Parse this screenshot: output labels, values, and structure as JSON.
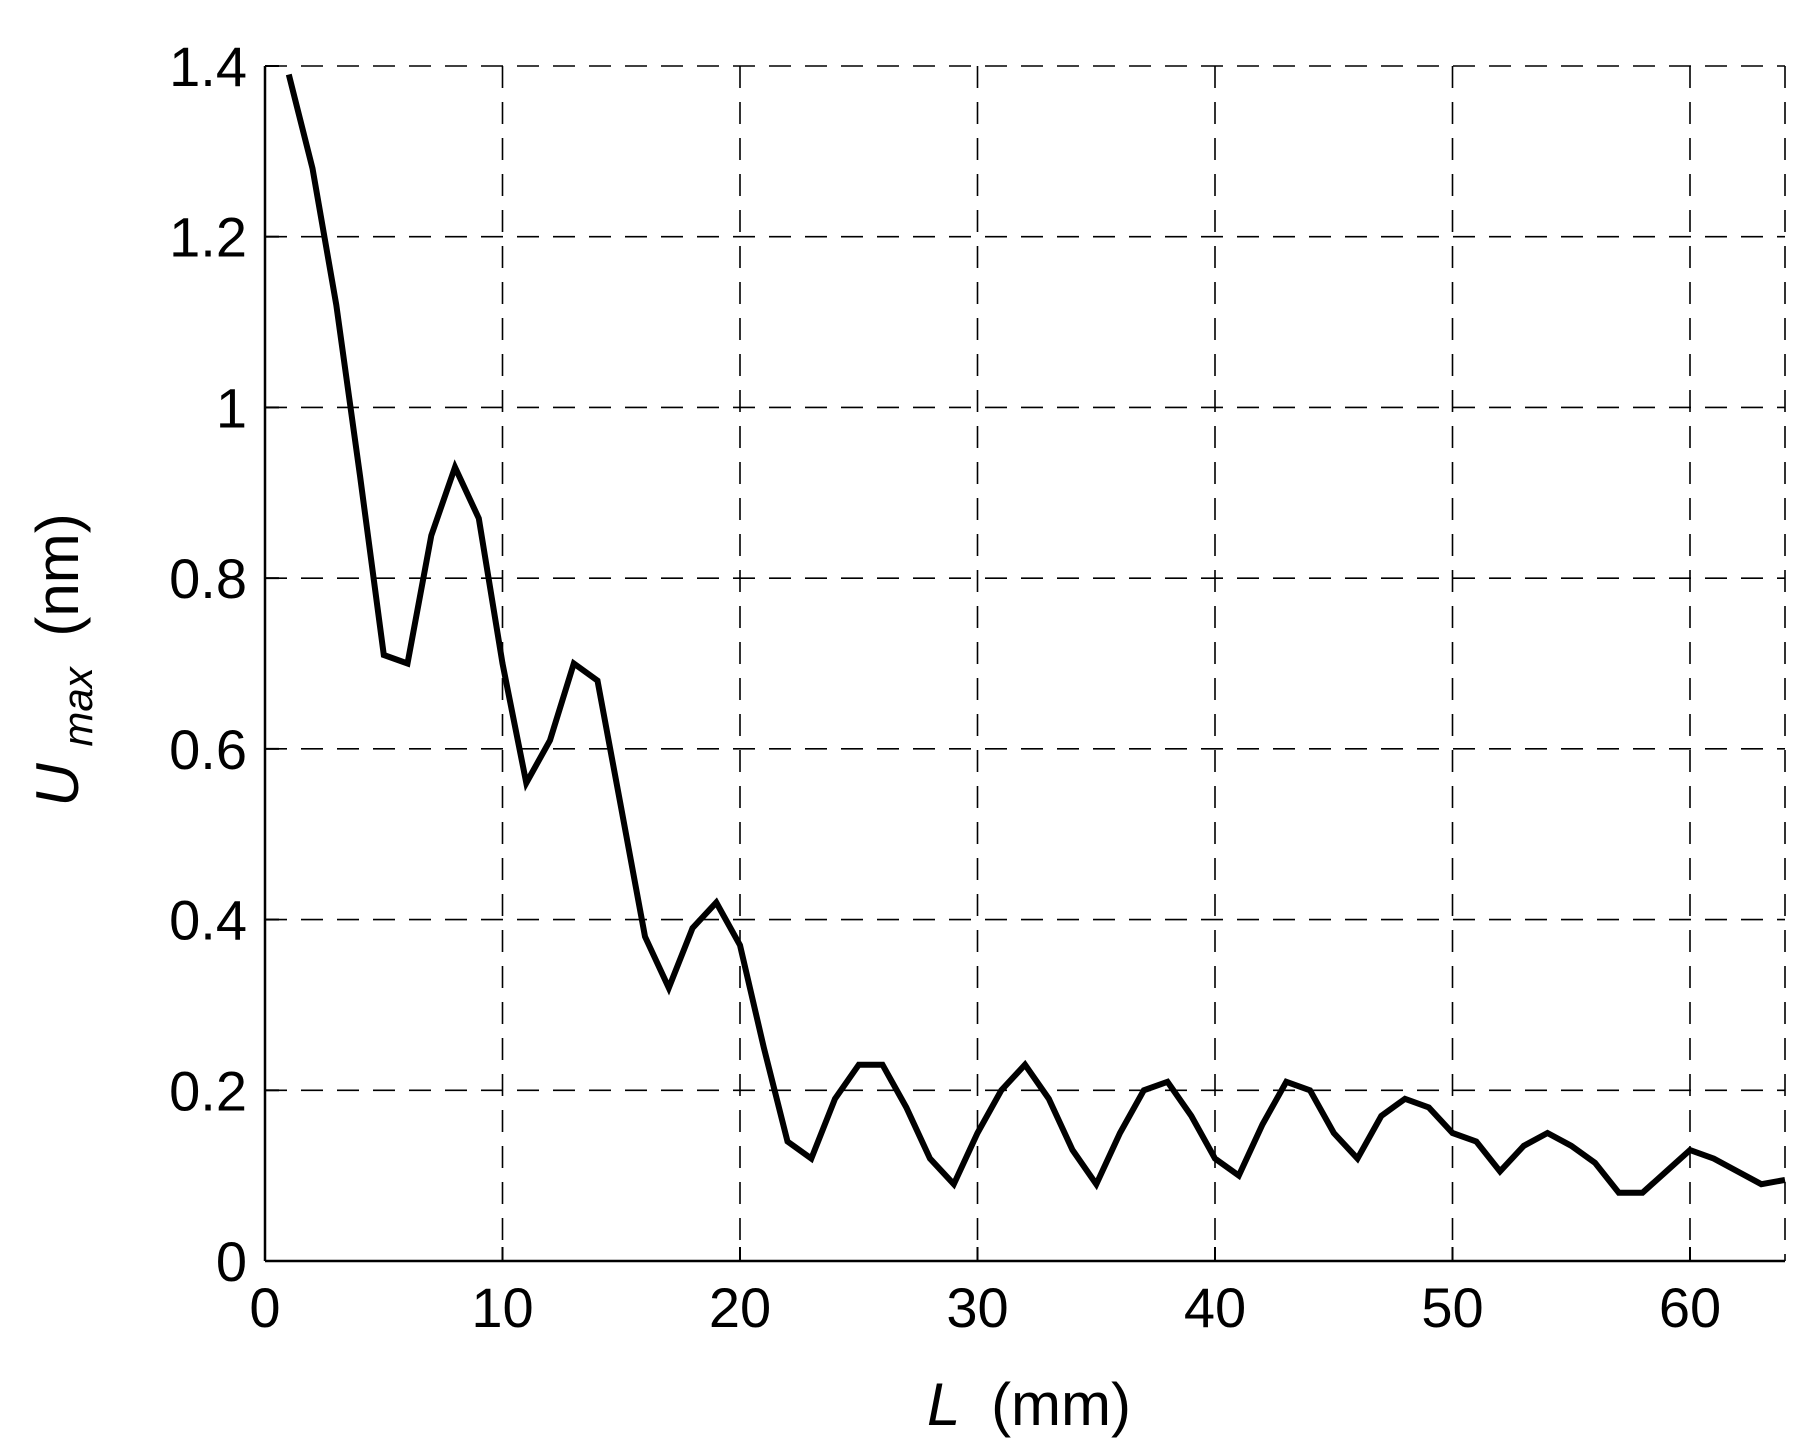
{
  "chart_data": {
    "type": "line",
    "title": "",
    "xlabel": {
      "symbol": "L",
      "unit": "(mm)"
    },
    "ylabel": {
      "symbol": "U",
      "subscript": "max",
      "unit": "(nm)"
    },
    "xlim": [
      0,
      64
    ],
    "ylim": [
      0,
      1.4
    ],
    "xticks": [
      0,
      10,
      20,
      30,
      40,
      50,
      60
    ],
    "xtick_labels": [
      "0",
      "10",
      "20",
      "30",
      "40",
      "50",
      "60"
    ],
    "yticks": [
      0,
      0.2,
      0.4,
      0.6,
      0.8,
      1,
      1.2,
      1.4
    ],
    "ytick_labels": [
      "0",
      "0.2",
      "0.4",
      "0.6",
      "0.8",
      "1",
      "1.2",
      "1.4"
    ],
    "grid": true,
    "grid_style": "dashed",
    "line_color": "#000000",
    "series": [
      {
        "x": [
          1,
          2,
          3,
          4,
          5,
          6,
          7,
          8,
          9,
          10,
          11,
          12,
          13,
          14,
          15,
          16,
          17,
          18,
          19,
          20,
          21,
          22,
          23,
          24,
          25,
          26,
          27,
          28,
          29,
          30,
          31,
          32,
          33,
          34,
          35,
          36,
          37,
          38,
          39,
          40,
          41,
          42,
          43,
          44,
          45,
          46,
          47,
          48,
          49,
          50,
          51,
          52,
          53,
          54,
          55,
          56,
          57,
          58,
          59,
          60,
          61,
          62,
          63,
          64
        ],
        "y": [
          1.39,
          1.28,
          1.12,
          0.92,
          0.71,
          0.7,
          0.85,
          0.93,
          0.87,
          0.7,
          0.56,
          0.61,
          0.7,
          0.68,
          0.53,
          0.38,
          0.32,
          0.39,
          0.42,
          0.37,
          0.25,
          0.14,
          0.12,
          0.19,
          0.23,
          0.23,
          0.18,
          0.12,
          0.09,
          0.15,
          0.2,
          0.23,
          0.19,
          0.13,
          0.09,
          0.15,
          0.2,
          0.21,
          0.17,
          0.12,
          0.1,
          0.16,
          0.21,
          0.2,
          0.15,
          0.12,
          0.17,
          0.19,
          0.18,
          0.15,
          0.14,
          0.105,
          0.135,
          0.15,
          0.135,
          0.115,
          0.08,
          0.08,
          0.105,
          0.13,
          0.12,
          0.105,
          0.09,
          0.095
        ]
      }
    ]
  }
}
